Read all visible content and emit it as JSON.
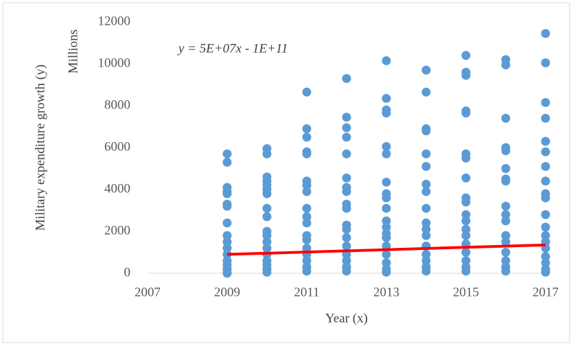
{
  "chart_data": {
    "type": "scatter",
    "equation": "y = 5E+07x - 1E+11",
    "x_label": "Year (x)",
    "y_label": "Military expenditure growth (y)",
    "y_unit_label": "Millions",
    "xlim": [
      2007,
      2017
    ],
    "xticks": [
      2007,
      2009,
      2011,
      2013,
      2015,
      2017
    ],
    "ylim": [
      0,
      12000
    ],
    "yticks": [
      0,
      2000,
      4000,
      6000,
      8000,
      10000,
      12000
    ],
    "color": "#5b9bd5",
    "x": [
      2009,
      2009,
      2009,
      2009,
      2009,
      2009,
      2009,
      2009,
      2009,
      2009,
      2009,
      2009,
      2009,
      2009,
      2009,
      2009,
      2009,
      2010,
      2010,
      2010,
      2010,
      2010,
      2010,
      2010,
      2010,
      2010,
      2010,
      2010,
      2010,
      2010,
      2010,
      2010,
      2010,
      2010,
      2010,
      2011,
      2011,
      2011,
      2011,
      2011,
      2011,
      2011,
      2011,
      2011,
      2011,
      2011,
      2011,
      2011,
      2011,
      2011,
      2011,
      2011,
      2011,
      2012,
      2012,
      2012,
      2012,
      2012,
      2012,
      2012,
      2012,
      2012,
      2012,
      2012,
      2012,
      2012,
      2012,
      2012,
      2012,
      2012,
      2012,
      2013,
      2013,
      2013,
      2013,
      2013,
      2013,
      2013,
      2013,
      2013,
      2013,
      2013,
      2013,
      2013,
      2013,
      2013,
      2013,
      2013,
      2013,
      2013,
      2014,
      2014,
      2014,
      2014,
      2014,
      2014,
      2014,
      2014,
      2014,
      2014,
      2014,
      2014,
      2014,
      2014,
      2014,
      2014,
      2014,
      2015,
      2015,
      2015,
      2015,
      2015,
      2015,
      2015,
      2015,
      2015,
      2015,
      2015,
      2015,
      2015,
      2015,
      2015,
      2015,
      2015,
      2015,
      2015,
      2016,
      2016,
      2016,
      2016,
      2016,
      2016,
      2016,
      2016,
      2016,
      2016,
      2016,
      2016,
      2016,
      2016,
      2016,
      2016,
      2016,
      2017,
      2017,
      2017,
      2017,
      2017,
      2017,
      2017,
      2017,
      2017,
      2017,
      2017,
      2017,
      2017,
      2017,
      2017,
      2017,
      2017,
      2017,
      2017
    ],
    "values": [
      5700,
      5300,
      4100,
      3900,
      3800,
      3300,
      3200,
      2400,
      1800,
      1500,
      1200,
      900,
      600,
      400,
      200,
      50,
      0,
      5950,
      5700,
      4600,
      4400,
      4200,
      4000,
      3800,
      3100,
      2700,
      2000,
      1800,
      1500,
      1200,
      900,
      600,
      400,
      200,
      50,
      8650,
      6900,
      6500,
      5800,
      5700,
      4400,
      4200,
      3900,
      3100,
      2700,
      2400,
      1800,
      1600,
      1200,
      900,
      600,
      300,
      100,
      9300,
      7450,
      6950,
      6500,
      5700,
      4550,
      4100,
      3900,
      3300,
      3100,
      2300,
      2100,
      1700,
      1300,
      900,
      600,
      300,
      100,
      10150,
      8350,
      7800,
      7650,
      6050,
      5700,
      4350,
      3800,
      3600,
      3100,
      2500,
      2200,
      1900,
      1700,
      1300,
      900,
      500,
      200,
      50,
      9700,
      8650,
      6900,
      6800,
      5700,
      5100,
      4250,
      3900,
      3100,
      2400,
      2100,
      1800,
      1300,
      900,
      600,
      300,
      100,
      10400,
      9600,
      9450,
      7750,
      7650,
      5700,
      5500,
      4550,
      3600,
      3400,
      2800,
      2500,
      2100,
      1800,
      1400,
      1000,
      600,
      300,
      100,
      10200,
      9950,
      7400,
      6000,
      5850,
      5000,
      4500,
      4400,
      3200,
      2800,
      2500,
      1800,
      1500,
      1000,
      600,
      300,
      100,
      11450,
      10050,
      8150,
      7400,
      6300,
      5800,
      5100,
      4400,
      3800,
      3600,
      2800,
      2200,
      1800,
      1500,
      1200,
      800,
      500,
      200,
      50
    ],
    "trendline": {
      "x": [
        2009,
        2017
      ],
      "values": [
        900,
        1350
      ],
      "color": "#ff0000"
    }
  }
}
